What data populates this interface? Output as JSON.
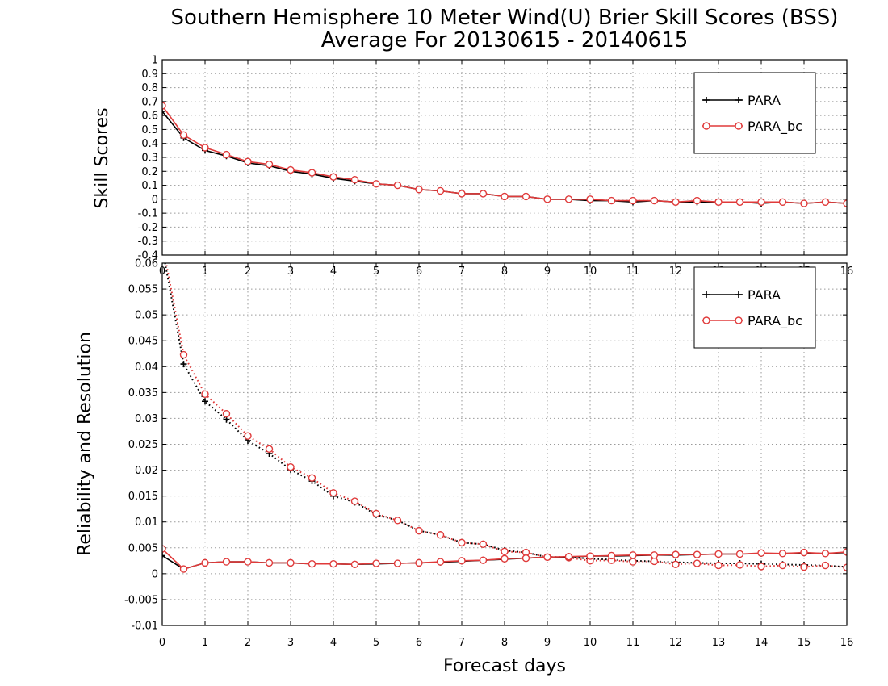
{
  "title_line1": "Southern Hemisphere 10 Meter Wind(U) Brier Skill Scores (BSS)",
  "title_line2": "Average For 20130615 - 20140615",
  "xlabel": "Forecast days",
  "colors": {
    "PARA": "#000000",
    "PARA_bc": "#e03a3a",
    "grid": "#9a9a9a"
  },
  "chart_data": [
    {
      "type": "line",
      "panel": "top",
      "ylabel": "Skill Scores",
      "xlim": [
        0,
        16
      ],
      "ylim": [
        -0.4,
        1
      ],
      "x_ticks": [
        "0",
        "1",
        "2",
        "3",
        "4",
        "5",
        "6",
        "7",
        "8",
        "9",
        "10",
        "11",
        "12",
        "13",
        "14",
        "15",
        "16"
      ],
      "y_ticks": [
        "-0.4",
        "-0.3",
        "-0.2",
        "-0.1",
        "0",
        "0.1",
        "0.2",
        "0.3",
        "0.4",
        "0.5",
        "0.6",
        "0.7",
        "0.8",
        "0.9",
        "1"
      ],
      "grid": true,
      "legend": "top-right",
      "x": [
        0,
        0.5,
        1,
        1.5,
        2,
        2.5,
        3,
        3.5,
        4,
        4.5,
        5,
        5.5,
        6,
        6.5,
        7,
        7.5,
        8,
        8.5,
        9,
        9.5,
        10,
        10.5,
        11,
        11.5,
        12,
        12.5,
        13,
        13.5,
        14,
        14.5,
        15,
        15.5,
        16
      ],
      "series": [
        {
          "name": "PARA",
          "style": "solid",
          "marker": "plus",
          "values": [
            0.63,
            0.44,
            0.35,
            0.31,
            0.26,
            0.24,
            0.2,
            0.18,
            0.15,
            0.13,
            0.11,
            0.1,
            0.07,
            0.06,
            0.04,
            0.04,
            0.02,
            0.02,
            0.0,
            0.0,
            -0.01,
            -0.01,
            -0.02,
            -0.01,
            -0.02,
            -0.02,
            -0.02,
            -0.02,
            -0.03,
            -0.02,
            -0.03,
            -0.02,
            -0.03
          ]
        },
        {
          "name": "PARA_bc",
          "style": "solid",
          "marker": "circle",
          "values": [
            0.67,
            0.46,
            0.37,
            0.32,
            0.27,
            0.25,
            0.21,
            0.19,
            0.16,
            0.14,
            0.11,
            0.1,
            0.07,
            0.06,
            0.04,
            0.04,
            0.02,
            0.02,
            0.0,
            0.0,
            0.0,
            -0.01,
            -0.01,
            -0.01,
            -0.02,
            -0.01,
            -0.02,
            -0.02,
            -0.02,
            -0.02,
            -0.03,
            -0.02,
            -0.03
          ]
        }
      ]
    },
    {
      "type": "line",
      "panel": "bottom",
      "ylabel": "Reliability and Resolution",
      "xlim": [
        0,
        16
      ],
      "ylim": [
        -0.01,
        0.06
      ],
      "x_ticks": [
        "0",
        "1",
        "2",
        "3",
        "4",
        "5",
        "6",
        "7",
        "8",
        "9",
        "10",
        "11",
        "12",
        "13",
        "14",
        "15",
        "16"
      ],
      "y_ticks": [
        "-0.01",
        "-0.005",
        "0",
        "0.005",
        "0.01",
        "0.015",
        "0.02",
        "0.025",
        "0.03",
        "0.035",
        "0.04",
        "0.045",
        "0.05",
        "0.055",
        "0.06"
      ],
      "grid": true,
      "legend": "top-right",
      "x": [
        0,
        0.5,
        1,
        1.5,
        2,
        2.5,
        3,
        3.5,
        4,
        4.5,
        5,
        5.5,
        6,
        6.5,
        7,
        7.5,
        8,
        8.5,
        9,
        9.5,
        10,
        10.5,
        11,
        11.5,
        12,
        12.5,
        13,
        13.5,
        14,
        14.5,
        15,
        15.5,
        16
      ],
      "series": [
        {
          "name": "PARA",
          "style": "dotted",
          "marker": "plus",
          "values": [
            0.063,
            0.0405,
            0.0333,
            0.0298,
            0.0257,
            0.0232,
            0.0201,
            0.0179,
            0.015,
            0.0138,
            0.0114,
            0.0103,
            0.0083,
            0.0075,
            0.006,
            0.0057,
            0.0045,
            0.0041,
            0.0032,
            0.0032,
            0.0029,
            0.0027,
            0.0025,
            0.0024,
            0.0022,
            0.0021,
            0.002,
            0.002,
            0.0019,
            0.0018,
            0.0017,
            0.0016,
            0.0013
          ]
        },
        {
          "name": "PARA_bc",
          "style": "dotted",
          "marker": "circle",
          "values": [
            0.064,
            0.0423,
            0.0347,
            0.0309,
            0.0266,
            0.0241,
            0.0206,
            0.0185,
            0.0156,
            0.014,
            0.0116,
            0.0103,
            0.0083,
            0.0075,
            0.006,
            0.0057,
            0.0043,
            0.0041,
            0.0032,
            0.0031,
            0.0025,
            0.0026,
            0.0023,
            0.0024,
            0.0018,
            0.002,
            0.0016,
            0.0017,
            0.0014,
            0.0016,
            0.0013,
            0.0016,
            0.0012
          ]
        },
        {
          "name": "PARA",
          "style": "solid",
          "marker": "plus",
          "values": [
            0.0035,
            0.0009,
            0.0021,
            0.0023,
            0.0023,
            0.0021,
            0.0021,
            0.0019,
            0.0019,
            0.0018,
            0.0019,
            0.002,
            0.0021,
            0.0022,
            0.0024,
            0.0026,
            0.0028,
            0.003,
            0.0032,
            0.0032,
            0.0034,
            0.0034,
            0.0035,
            0.0036,
            0.0036,
            0.0037,
            0.0038,
            0.0038,
            0.0039,
            0.0039,
            0.004,
            0.0039,
            0.0041
          ]
        },
        {
          "name": "PARA_bc",
          "style": "solid",
          "marker": "circle",
          "values": [
            0.0048,
            0.0009,
            0.0021,
            0.0023,
            0.0023,
            0.0021,
            0.0021,
            0.0019,
            0.0019,
            0.0018,
            0.002,
            0.002,
            0.0021,
            0.0023,
            0.0025,
            0.0026,
            0.0029,
            0.003,
            0.0032,
            0.0033,
            0.0034,
            0.0035,
            0.0036,
            0.0036,
            0.0037,
            0.0037,
            0.0038,
            0.0038,
            0.004,
            0.0039,
            0.0041,
            0.0039,
            0.0042
          ]
        }
      ]
    }
  ]
}
